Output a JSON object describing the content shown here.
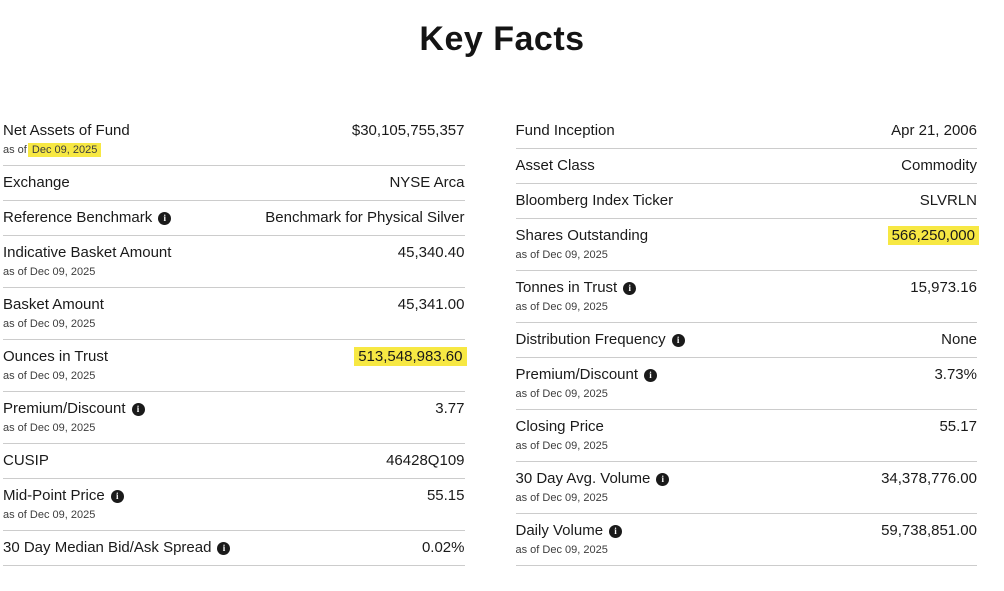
{
  "title": "Key Facts",
  "asof_prefix": "as of ",
  "highlight_color": "#f7e843",
  "left_rows": [
    {
      "label": "Net Assets of Fund",
      "info": false,
      "asof": "Dec 09, 2025",
      "asof_highlight": true,
      "value": "$30,105,755,357",
      "value_highlight": false
    },
    {
      "label": "Exchange",
      "info": false,
      "asof": null,
      "asof_highlight": false,
      "value": "NYSE Arca",
      "value_highlight": false
    },
    {
      "label": "Reference Benchmark",
      "info": true,
      "asof": null,
      "asof_highlight": false,
      "value": "Benchmark for Physical Silver",
      "value_highlight": false
    },
    {
      "label": "Indicative Basket Amount",
      "info": false,
      "asof": "Dec 09, 2025",
      "asof_highlight": false,
      "value": "45,340.40",
      "value_highlight": false
    },
    {
      "label": "Basket Amount",
      "info": false,
      "asof": "Dec 09, 2025",
      "asof_highlight": false,
      "value": "45,341.00",
      "value_highlight": false
    },
    {
      "label": "Ounces in Trust",
      "info": false,
      "asof": "Dec 09, 2025",
      "asof_highlight": false,
      "value": "513,548,983.60",
      "value_highlight": true
    },
    {
      "label": "Premium/Discount",
      "info": true,
      "asof": "Dec 09, 2025",
      "asof_highlight": false,
      "value": "3.77",
      "value_highlight": false
    },
    {
      "label": "CUSIP",
      "info": false,
      "asof": null,
      "asof_highlight": false,
      "value": "46428Q109",
      "value_highlight": false
    },
    {
      "label": "Mid-Point Price",
      "info": true,
      "asof": "Dec 09, 2025",
      "asof_highlight": false,
      "value": "55.15",
      "value_highlight": false
    },
    {
      "label": "30 Day Median Bid/Ask Spread",
      "info": true,
      "asof": null,
      "asof_highlight": false,
      "value": "0.02%",
      "value_highlight": false
    }
  ],
  "right_rows": [
    {
      "label": "Fund Inception",
      "info": false,
      "asof": null,
      "asof_highlight": false,
      "value": "Apr 21, 2006",
      "value_highlight": false
    },
    {
      "label": "Asset Class",
      "info": false,
      "asof": null,
      "asof_highlight": false,
      "value": "Commodity",
      "value_highlight": false
    },
    {
      "label": "Bloomberg Index Ticker",
      "info": false,
      "asof": null,
      "asof_highlight": false,
      "value": "SLVRLN",
      "value_highlight": false
    },
    {
      "label": "Shares Outstanding",
      "info": false,
      "asof": "Dec 09, 2025",
      "asof_highlight": false,
      "value": "566,250,000",
      "value_highlight": true
    },
    {
      "label": "Tonnes in Trust",
      "info": true,
      "asof": "Dec 09, 2025",
      "asof_highlight": false,
      "value": "15,973.16",
      "value_highlight": false
    },
    {
      "label": "Distribution Frequency",
      "info": true,
      "asof": null,
      "asof_highlight": false,
      "value": "None",
      "value_highlight": false
    },
    {
      "label": "Premium/Discount",
      "info": true,
      "asof": "Dec 09, 2025",
      "asof_highlight": false,
      "value": "3.73%",
      "value_highlight": false
    },
    {
      "label": "Closing Price",
      "info": false,
      "asof": "Dec 09, 2025",
      "asof_highlight": false,
      "value": "55.17",
      "value_highlight": false
    },
    {
      "label": "30 Day Avg. Volume",
      "info": true,
      "asof": "Dec 09, 2025",
      "asof_highlight": false,
      "value": "34,378,776.00",
      "value_highlight": false
    },
    {
      "label": "Daily Volume",
      "info": true,
      "asof": "Dec 09, 2025",
      "asof_highlight": false,
      "value": "59,738,851.00",
      "value_highlight": false
    }
  ]
}
